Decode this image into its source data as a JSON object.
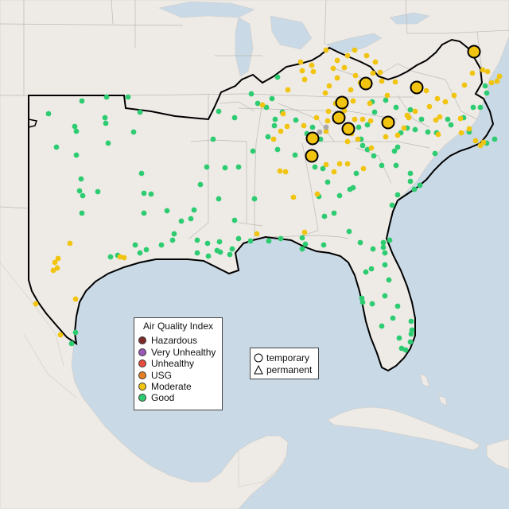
{
  "legend": {
    "title": "Air Quality Index",
    "items": [
      {
        "label": "Hazardous",
        "color": "#7e2b28"
      },
      {
        "label": "Very Unhealthy",
        "color": "#9b59b6"
      },
      {
        "label": "Unhealthy",
        "color": "#e74c3c"
      },
      {
        "label": "USG",
        "color": "#e67e22"
      },
      {
        "label": "Moderate",
        "color": "#f1c40f"
      },
      {
        "label": "Good",
        "color": "#2ecc71"
      }
    ]
  },
  "shape_legend": {
    "items": [
      {
        "label": "temporary",
        "icon": "circle-icon"
      },
      {
        "label": "permanent",
        "icon": "triangle-icon"
      }
    ]
  },
  "colors": {
    "water": "#c9d9e6",
    "land": "#eeebe7",
    "moderate": "#f1c40f",
    "good": "#2ecc71",
    "unknown": "#aaaaaa"
  }
}
